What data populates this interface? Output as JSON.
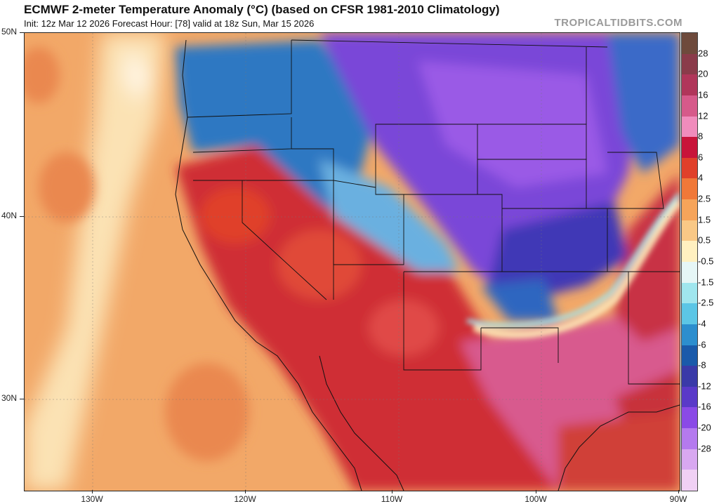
{
  "header": {
    "title": "ECMWF 2-meter Temperature Anomaly (°C) (based on CFSR 1981-2010 Climatology)",
    "subtitle": "Init: 12z Mar 12 2026   Forecast Hour: [78]   valid at 18z Sun, Mar 15 2026",
    "brand": "TROPICALTIDBITS.COM"
  },
  "axes": {
    "lat_labels": [
      "50N",
      "40N",
      "30N"
    ],
    "lon_labels": [
      "130W",
      "120W",
      "110W",
      "100W",
      "90W"
    ]
  },
  "colorbar": {
    "labels": [
      "28",
      "20",
      "16",
      "12",
      "8",
      "6",
      "4",
      "2.5",
      "1.5",
      "0.5",
      "-0.5",
      "-1.5",
      "-2.5",
      "-4",
      "-6",
      "-8",
      "-12",
      "-16",
      "-20",
      "-28"
    ],
    "colors": [
      "#6e4a3c",
      "#8a3b4a",
      "#b0365a",
      "#d65a8a",
      "#f08cbc",
      "#c8143a",
      "#e0402a",
      "#f07838",
      "#f6a45a",
      "#f9c886",
      "#fff0c0",
      "#e6f6f6",
      "#a0e6ee",
      "#5cc6e6",
      "#2c8ece",
      "#1a5aaa",
      "#3a3aa8",
      "#5a3ac8",
      "#8a4ae6",
      "#b47aee",
      "#d8a8f0",
      "#f0d0f4"
    ]
  },
  "map": {
    "region": "Western and Central United States",
    "colors": {
      "ocean_warm": "#f2a868",
      "ocean_pale": "#fbe2b4",
      "coast_cool": "#8ed6e6",
      "northwest_blue": "#2f78c2",
      "plains_purple": "#7a46d8",
      "central_deep_blue": "#4038b6",
      "southwest_red": "#cf2f36",
      "texas_pink": "#d85a8e",
      "gulf_red": "#c83044"
    }
  }
}
